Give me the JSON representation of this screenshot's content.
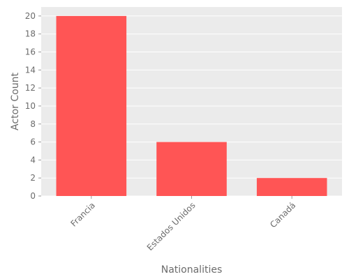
{
  "chart_data": {
    "type": "bar",
    "categories": [
      "Francia",
      "Estados Unidos",
      "Canadá"
    ],
    "values": [
      20,
      6,
      2
    ],
    "title": "",
    "xlabel": "Nationalities",
    "ylabel": "Actor Count",
    "ylim": [
      0,
      21
    ],
    "yticks": [
      0,
      2,
      4,
      6,
      8,
      10,
      12,
      14,
      16,
      18,
      20
    ],
    "grid": true,
    "legend": "none",
    "colors": {
      "bar": "#ff5555",
      "plot_background": "#ebebeb",
      "grid": "#ffffff",
      "text": "#6b6b6b"
    }
  }
}
